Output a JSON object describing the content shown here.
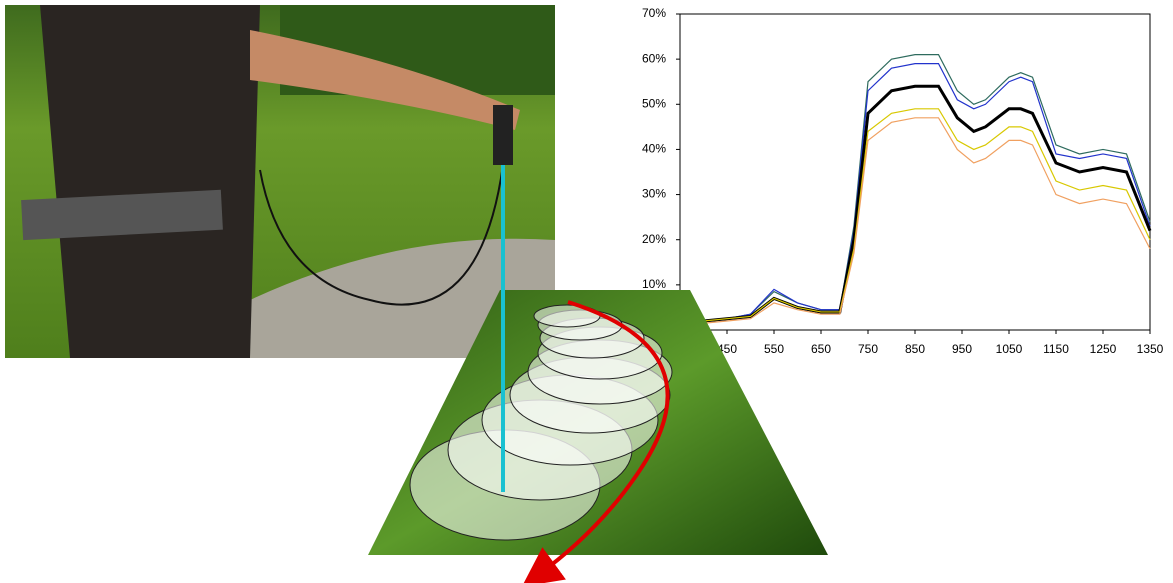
{
  "chart_data": {
    "type": "line",
    "x": [
      400,
      450,
      500,
      550,
      600,
      650,
      690,
      720,
      750,
      800,
      850,
      900,
      940,
      975,
      1000,
      1050,
      1075,
      1100,
      1150,
      1200,
      1250,
      1300,
      1350
    ],
    "series": [
      {
        "color": "#2e6b5e",
        "values": [
          2,
          2.5,
          3.5,
          8.5,
          6,
          4.5,
          4.5,
          23,
          55,
          60,
          61,
          61,
          53,
          50,
          51,
          56,
          57,
          56,
          41,
          39,
          40,
          39,
          24
        ]
      },
      {
        "color": "#2233cc",
        "values": [
          2,
          2.5,
          3.5,
          9,
          6,
          4.5,
          4.5,
          22,
          53,
          58,
          59,
          59,
          51,
          49,
          50,
          55,
          56,
          55,
          39,
          38,
          39,
          38,
          23
        ]
      },
      {
        "color": "#000000",
        "values": [
          2,
          2.5,
          3,
          7,
          5,
          4,
          4,
          20,
          48,
          53,
          54,
          54,
          47,
          44,
          45,
          49,
          49,
          48,
          37,
          35,
          36,
          35,
          22
        ]
      },
      {
        "color": "#d8c800",
        "values": [
          2,
          2.5,
          3,
          7,
          5,
          4,
          4,
          18,
          44,
          48,
          49,
          49,
          42,
          40,
          41,
          45,
          45,
          44,
          33,
          31,
          32,
          31,
          20
        ]
      },
      {
        "color": "#f0a060",
        "values": [
          1.5,
          2,
          2.5,
          6,
          4.5,
          3.5,
          3.5,
          17,
          42,
          46,
          47,
          47,
          40,
          37,
          38,
          42,
          42,
          41,
          30,
          28,
          29,
          28,
          18
        ]
      }
    ],
    "xlim": [
      350,
      1350
    ],
    "xticks": [
      450,
      550,
      650,
      750,
      850,
      950,
      1050,
      1150,
      1250,
      1350
    ],
    "ylim": [
      0,
      70
    ],
    "yticks": [
      {
        "value": 10,
        "label": "10%"
      },
      {
        "value": 20,
        "label": "20%"
      },
      {
        "value": 30,
        "label": "30%"
      },
      {
        "value": 40,
        "label": "40%"
      },
      {
        "value": 50,
        "label": "50%"
      },
      {
        "value": 60,
        "label": "60%"
      },
      {
        "value": 70,
        "label": "70%"
      }
    ]
  }
}
